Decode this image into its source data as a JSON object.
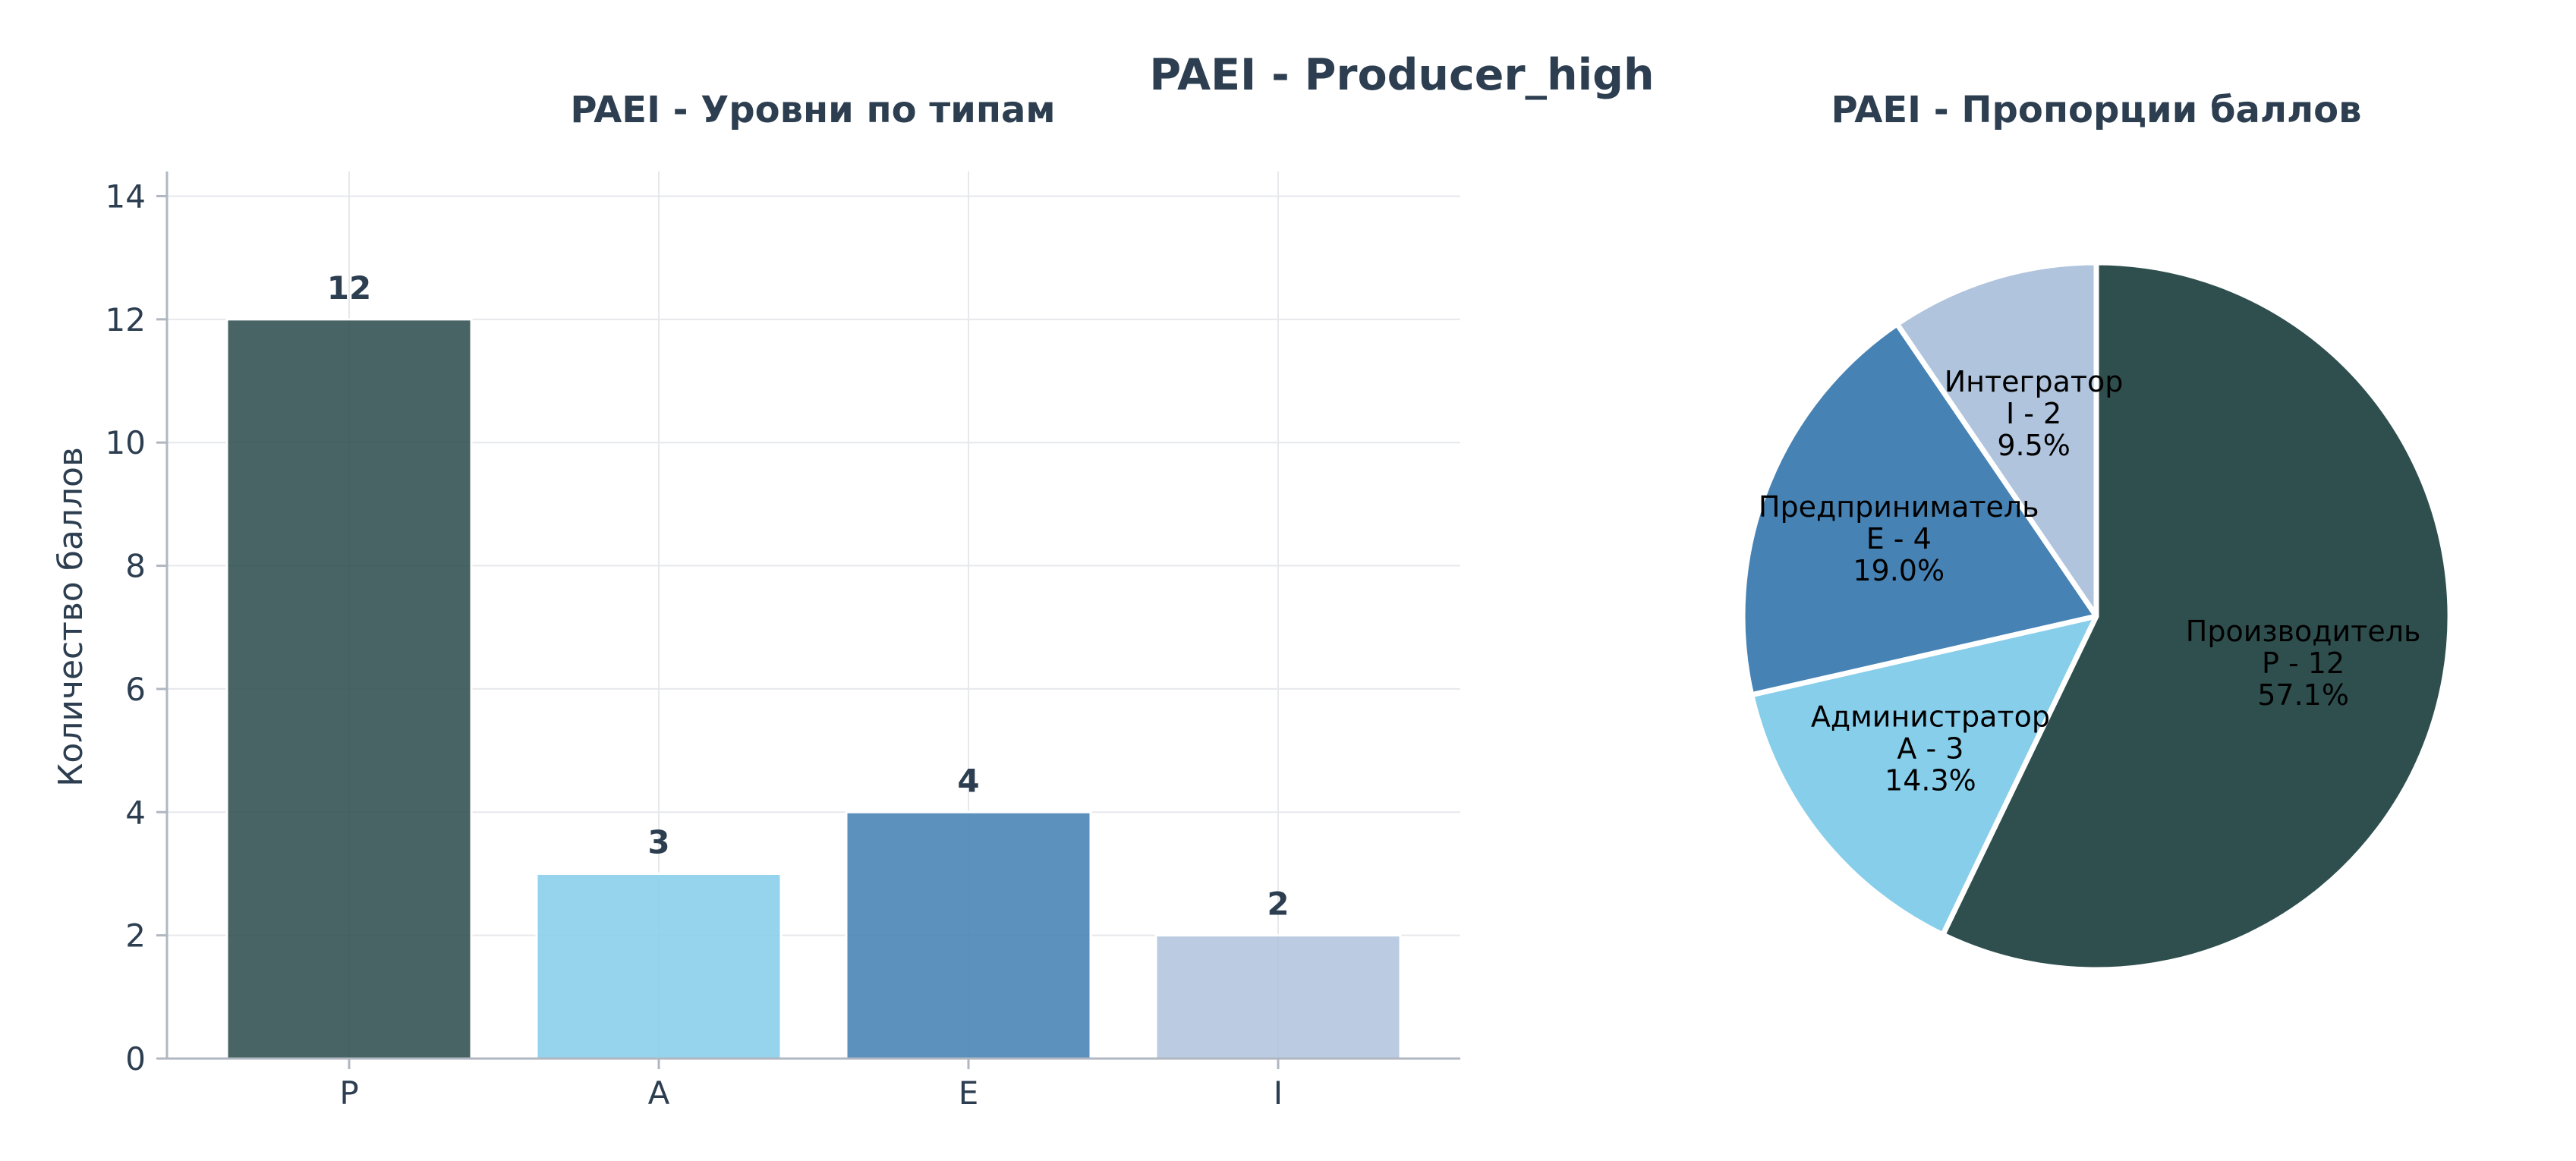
{
  "figure": {
    "title": "PAEI - Producer_high"
  },
  "chart_data": [
    {
      "type": "bar",
      "title": "PAEI - Уровни по типам",
      "xlabel": "",
      "ylabel": "Количество баллов",
      "categories": [
        "P",
        "A",
        "E",
        "I"
      ],
      "values": [
        12,
        3,
        4,
        2
      ],
      "value_labels": [
        "12",
        "3",
        "4",
        "2"
      ],
      "ylim": [
        0,
        14.4
      ],
      "yticks": [
        0,
        2,
        4,
        6,
        8,
        10,
        12,
        14
      ],
      "ytick_labels": [
        "0",
        "2",
        "4",
        "6",
        "8",
        "10",
        "12",
        "14"
      ],
      "colors": [
        "#2f4f4f",
        "#87ceeb",
        "#4682b4",
        "#b0c4de"
      ],
      "grid": true
    },
    {
      "type": "pie",
      "title": "PAEI - Пропорции баллов",
      "slices": [
        {
          "name": "Производитель",
          "short": "P - 12",
          "value": 12,
          "percent": "57.1%",
          "color": "#2f4f4f"
        },
        {
          "name": "Администратор",
          "short": "A - 3",
          "value": 3,
          "percent": "14.3%",
          "color": "#87ceeb"
        },
        {
          "name": "Предприниматель",
          "short": "E - 4",
          "value": 4,
          "percent": "19.0%",
          "color": "#4682b4"
        },
        {
          "name": "Интегратор",
          "short": "I - 2",
          "value": 2,
          "percent": "9.5%",
          "color": "#b0c4de"
        }
      ],
      "start_angle": 90,
      "direction": "clockwise"
    }
  ]
}
